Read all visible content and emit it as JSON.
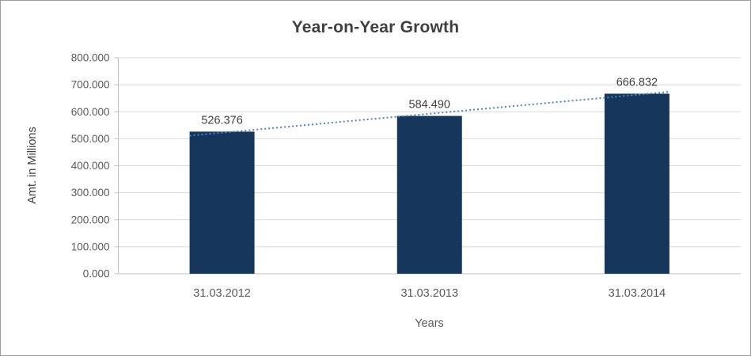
{
  "frame": {
    "border_color": "#9d9d9d",
    "background": "#ffffff"
  },
  "chart_data": {
    "type": "bar",
    "title": "Year-on-Year Growth",
    "xlabel": "Years",
    "ylabel": "Amt. in Millions",
    "categories": [
      "31.03.2012",
      "31.03.2013",
      "31.03.2014"
    ],
    "values": [
      526.376,
      584.49,
      666.832
    ],
    "data_labels": [
      "526.376",
      "584.490",
      "666.832"
    ],
    "ylim": [
      0,
      800
    ],
    "ytick_step": 100,
    "ytick_labels": [
      "0.000",
      "100.000",
      "200.000",
      "300.000",
      "400.000",
      "500.000",
      "600.000",
      "700.000",
      "800.000"
    ],
    "grid": true,
    "legend_position": "none",
    "trendline": {
      "style": "dotted",
      "color": "#4a87c7"
    },
    "bar_color": "#16365c",
    "gridline_color": "#d9d9d9",
    "axis_color": "#bfbfbf",
    "tick_text_color": "#595959",
    "label_text_color": "#3f3f3f",
    "title_color": "#3f3f3f"
  }
}
